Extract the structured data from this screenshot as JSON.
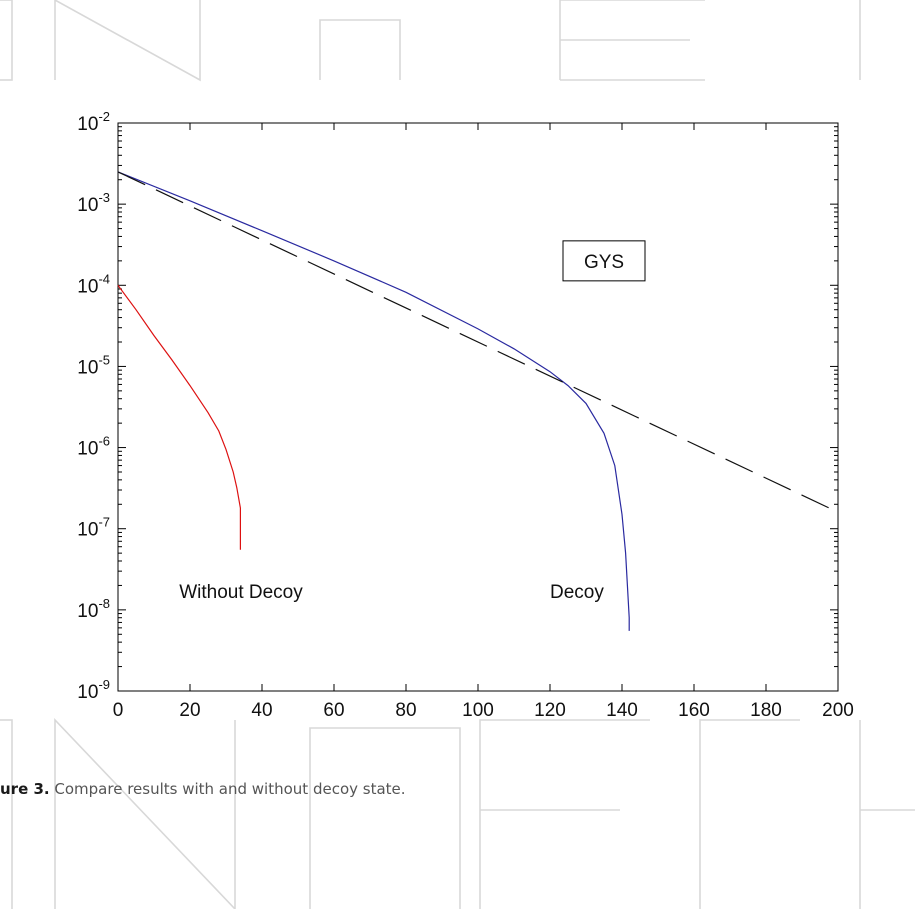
{
  "caption": {
    "label": "ure 3.",
    "text": " Compare results with and without decoy state."
  },
  "chart_data": {
    "type": "line",
    "title": "",
    "xlabel": "",
    "ylabel": "",
    "xlim": [
      0,
      200
    ],
    "ylim": [
      1e-09,
      0.01
    ],
    "yscale": "log",
    "grid": false,
    "x_ticks": [
      0,
      20,
      40,
      60,
      80,
      100,
      120,
      140,
      160,
      180,
      200
    ],
    "y_ticks": [
      {
        "value": 1e-09,
        "base": "10",
        "exp": "-9"
      },
      {
        "value": 1e-08,
        "base": "10",
        "exp": "-8"
      },
      {
        "value": 1e-07,
        "base": "10",
        "exp": "-7"
      },
      {
        "value": 1e-06,
        "base": "10",
        "exp": "-6"
      },
      {
        "value": 1e-05,
        "base": "10",
        "exp": "-5"
      },
      {
        "value": 0.0001,
        "base": "10",
        "exp": "-4"
      },
      {
        "value": 0.001,
        "base": "10",
        "exp": "-3"
      },
      {
        "value": 0.01,
        "base": "10",
        "exp": "-2"
      }
    ],
    "legend": {
      "label": "GYS",
      "x": 135,
      "y": 0.0002
    },
    "annotations": [
      {
        "text": "Without Decoy",
        "x": 17,
        "y": 1.4e-08
      },
      {
        "text": "Decoy",
        "x": 120,
        "y": 1.4e-08
      }
    ],
    "series": [
      {
        "color": "#2a2aa0",
        "dash": "solid",
        "x": [
          0,
          20,
          40,
          60,
          80,
          100,
          110,
          120,
          125,
          130,
          135,
          138,
          140,
          141,
          141.5,
          142,
          142
        ],
        "y": [
          0.0025,
          0.0011,
          0.00047,
          0.0002,
          8.2e-05,
          2.9e-05,
          1.65e-05,
          8.6e-06,
          5.8e-06,
          3.5e-06,
          1.5e-06,
          6e-07,
          1.5e-07,
          5e-08,
          2e-08,
          8e-09,
          5.5e-09
        ]
      },
      {
        "color": "#dd1111",
        "dash": "solid",
        "x": [
          0,
          5,
          10,
          15,
          20,
          25,
          28,
          30,
          32,
          33,
          34,
          34,
          34
        ],
        "y": [
          0.0001,
          5e-05,
          2.4e-05,
          1.2e-05,
          5.8e-06,
          2.7e-06,
          1.6e-06,
          9.5e-07,
          5e-07,
          3.2e-07,
          1.8e-07,
          1e-07,
          5.5e-08
        ]
      },
      {
        "color": "#111111",
        "dash": "dashed",
        "x": [
          0,
          200
        ],
        "y": [
          0.0025,
          1.6e-07
        ]
      }
    ]
  }
}
